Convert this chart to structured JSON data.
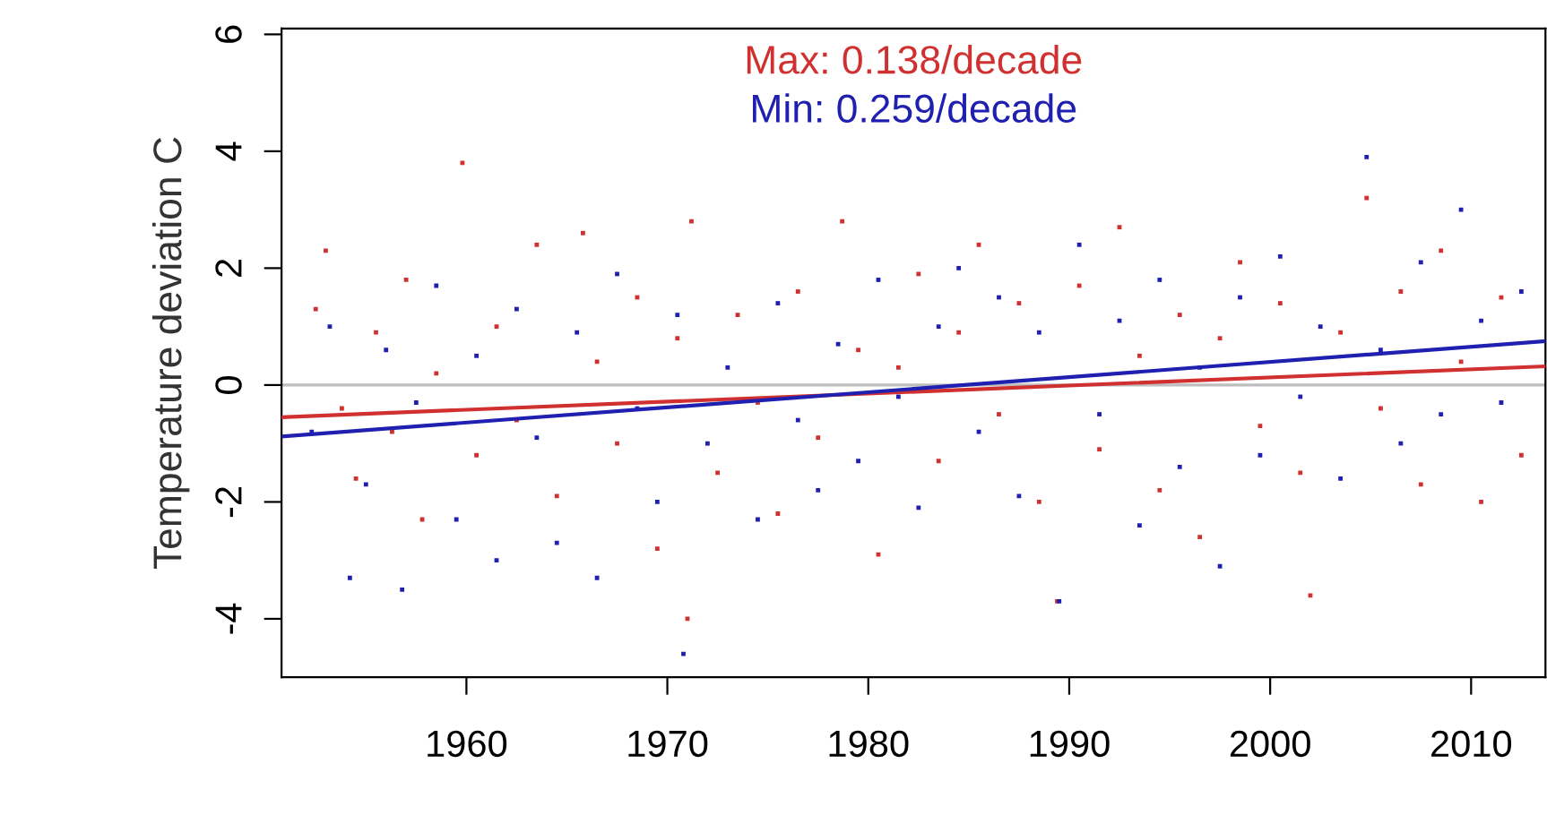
{
  "chart_data": {
    "type": "scatter",
    "ylabel": "Temperature deviation C",
    "annotations": [
      "Max: 0.138/decade",
      "Min: 0.259/decade"
    ],
    "xlim": [
      1950.8,
      2013.7
    ],
    "xticks": [
      1960,
      1970,
      1980,
      1990,
      2000,
      2010
    ],
    "ylim": [
      -5,
      6.1
    ],
    "yticks": [
      -4,
      -2,
      0,
      2,
      4,
      6
    ],
    "grid": false,
    "legend": false,
    "marker": "square",
    "ref_lines": [
      {
        "axis": "y",
        "value": 0,
        "color": "#bebebe"
      }
    ],
    "series": [
      {
        "color": "#d03030",
        "x": [
          1952.5,
          1953.0,
          1953.8,
          1954.5,
          1955.5,
          1956.3,
          1957.0,
          1957.8,
          1958.5,
          1959.8,
          1960.5,
          1961.5,
          1962.5,
          1963.5,
          1964.5,
          1965.8,
          1966.5,
          1967.5,
          1968.5,
          1969.5,
          1970.5,
          1971.0,
          1971.2,
          1972.5,
          1973.5,
          1974.5,
          1975.5,
          1976.5,
          1977.5,
          1978.7,
          1979.5,
          1980.5,
          1981.5,
          1982.5,
          1983.5,
          1984.5,
          1985.5,
          1986.5,
          1987.5,
          1988.5,
          1989.4,
          1990.5,
          1991.5,
          1992.5,
          1993.5,
          1994.5,
          1995.5,
          1996.5,
          1997.5,
          1998.5,
          1999.5,
          2000.5,
          2001.5,
          2002.0,
          2003.5,
          2004.8,
          2005.5,
          2006.5,
          2007.5,
          2008.5,
          2009.5,
          2010.5,
          2011.5,
          2012.5
        ],
        "values": [
          1.3,
          2.3,
          -0.4,
          -1.6,
          0.9,
          -0.8,
          1.8,
          -2.3,
          0.2,
          3.8,
          -1.2,
          1.0,
          -0.6,
          2.4,
          -1.9,
          2.6,
          0.4,
          -1.0,
          1.5,
          -2.8,
          0.8,
          -4.0,
          2.8,
          -1.5,
          1.2,
          -0.3,
          -2.2,
          1.6,
          -0.9,
          2.8,
          0.6,
          -2.9,
          0.3,
          1.9,
          -1.3,
          0.9,
          2.4,
          -0.5,
          1.4,
          -2.0,
          -3.7,
          1.7,
          -1.1,
          2.7,
          0.5,
          -1.8,
          1.2,
          -2.6,
          0.8,
          2.1,
          -0.7,
          1.4,
          -1.5,
          -3.6,
          0.9,
          3.2,
          -0.4,
          1.6,
          -1.7,
          2.3,
          0.4,
          -2.0,
          1.5,
          -1.2
        ]
      },
      {
        "color": "#2020b0",
        "x": [
          1952.3,
          1953.2,
          1954.2,
          1955.0,
          1956.0,
          1956.8,
          1957.5,
          1958.5,
          1959.5,
          1960.5,
          1961.5,
          1962.5,
          1963.5,
          1964.5,
          1965.5,
          1966.5,
          1967.5,
          1968.5,
          1969.5,
          1970.5,
          1970.8,
          1972.0,
          1973.0,
          1974.5,
          1975.5,
          1976.5,
          1977.5,
          1978.5,
          1979.5,
          1980.5,
          1981.5,
          1982.5,
          1983.5,
          1984.5,
          1985.5,
          1986.5,
          1987.5,
          1988.5,
          1989.5,
          1990.5,
          1991.5,
          1992.5,
          1993.5,
          1994.5,
          1995.5,
          1996.5,
          1997.5,
          1998.5,
          1999.5,
          2000.5,
          2001.5,
          2002.5,
          2003.5,
          2004.8,
          2005.5,
          2006.5,
          2007.5,
          2008.5,
          2009.5,
          2010.5,
          2011.5,
          2012.5
        ],
        "values": [
          -0.8,
          1.0,
          -3.3,
          -1.7,
          0.6,
          -3.5,
          -0.3,
          1.7,
          -2.3,
          0.5,
          -3.0,
          1.3,
          -0.9,
          -2.7,
          0.9,
          -3.3,
          1.9,
          -0.4,
          -2.0,
          1.2,
          -4.6,
          -1.0,
          0.3,
          -2.3,
          1.4,
          -0.6,
          -1.8,
          0.7,
          -1.3,
          1.8,
          -0.2,
          -2.1,
          1.0,
          2.0,
          -0.8,
          1.5,
          -1.9,
          0.9,
          -3.7,
          2.4,
          -0.5,
          1.1,
          -2.4,
          1.8,
          -1.4,
          0.3,
          -3.1,
          1.5,
          -1.2,
          2.2,
          -0.2,
          1.0,
          -1.6,
          3.9,
          0.6,
          -1.0,
          2.1,
          -0.5,
          3.0,
          1.1,
          -0.3,
          1.6
        ]
      },
      {
        "type": "line",
        "color": "#d03030",
        "marker": "none",
        "line_style": "solid",
        "x": [
          1950.8,
          2013.7
        ],
        "values": [
          -0.55,
          0.32
        ]
      },
      {
        "type": "line",
        "color": "#2020b0",
        "marker": "none",
        "line_style": "solid",
        "x": [
          1950.8,
          2013.7
        ],
        "values": [
          -0.88,
          0.75
        ]
      }
    ]
  }
}
